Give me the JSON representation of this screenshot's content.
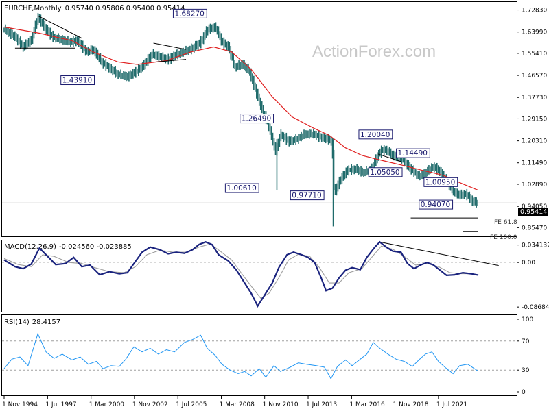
{
  "chart_data": [
    {
      "type": "ohlc",
      "title": "EURCHF,Monthly",
      "ohlc_text": "0.95740 0.95806 0.95400 0.95414",
      "ylim": [
        0.82,
        1.76
      ],
      "y_ticks": [
        "1.72830",
        "1.63990",
        "1.55410",
        "1.46570",
        "1.37730",
        "1.29150",
        "1.20310",
        "1.11490",
        "1.02890",
        "0.94050",
        "0.85470"
      ],
      "current_price": "0.95414",
      "x_labels": [
        "1 Nov 1994",
        "1 Jul 1997",
        "1 Mar 2000",
        "1 Nov 2002",
        "1 Jul 2005",
        "1 Mar 2008",
        "1 Nov 2010",
        "1 Jul 2013",
        "1 Mar 2016",
        "1 Nov 2018",
        "1 Jul 2021"
      ],
      "price_series": [
        [
          1994.83,
          1.65
        ],
        [
          1995.5,
          1.62
        ],
        [
          1996.0,
          1.58
        ],
        [
          1996.5,
          1.61
        ],
        [
          1996.9,
          1.7
        ],
        [
          1997.3,
          1.66
        ],
        [
          1997.8,
          1.62
        ],
        [
          1998.3,
          1.61
        ],
        [
          1998.8,
          1.6
        ],
        [
          1999.3,
          1.605
        ],
        [
          1999.9,
          1.56
        ],
        [
          2000.3,
          1.57
        ],
        [
          2000.8,
          1.52
        ],
        [
          2001.2,
          1.5
        ],
        [
          2001.8,
          1.47
        ],
        [
          2002.4,
          1.46
        ],
        [
          2002.9,
          1.48
        ],
        [
          2003.3,
          1.5
        ],
        [
          2003.9,
          1.55
        ],
        [
          2004.4,
          1.54
        ],
        [
          2004.9,
          1.53
        ],
        [
          2005.4,
          1.55
        ],
        [
          2005.9,
          1.56
        ],
        [
          2006.4,
          1.575
        ],
        [
          2006.9,
          1.6
        ],
        [
          2007.3,
          1.65
        ],
        [
          2007.8,
          1.66
        ],
        [
          2008.2,
          1.6
        ],
        [
          2008.6,
          1.58
        ],
        [
          2009.0,
          1.5
        ],
        [
          2009.5,
          1.51
        ],
        [
          2009.9,
          1.48
        ],
        [
          2010.3,
          1.4
        ],
        [
          2010.7,
          1.32
        ],
        [
          2011.0,
          1.28
        ],
        [
          2011.5,
          1.16
        ],
        [
          2011.6,
          1.18
        ],
        [
          2011.8,
          1.23
        ],
        [
          2012.3,
          1.201
        ],
        [
          2012.8,
          1.21
        ],
        [
          2013.3,
          1.23
        ],
        [
          2013.8,
          1.23
        ],
        [
          2014.3,
          1.218
        ],
        [
          2014.8,
          1.208
        ],
        [
          2014.96,
          1.2
        ],
        [
          2015.1,
          0.99
        ],
        [
          2015.4,
          1.04
        ],
        [
          2015.9,
          1.085
        ],
        [
          2016.4,
          1.09
        ],
        [
          2016.9,
          1.075
        ],
        [
          2017.4,
          1.09
        ],
        [
          2017.8,
          1.15
        ],
        [
          2018.1,
          1.17
        ],
        [
          2018.4,
          1.16
        ],
        [
          2018.8,
          1.14
        ],
        [
          2019.3,
          1.13
        ],
        [
          2019.8,
          1.09
        ],
        [
          2020.3,
          1.06
        ],
        [
          2020.7,
          1.075
        ],
        [
          2021.2,
          1.1
        ],
        [
          2021.6,
          1.08
        ],
        [
          2022.0,
          1.04
        ],
        [
          2022.4,
          1.0
        ],
        [
          2022.8,
          0.985
        ],
        [
          2023.2,
          0.99
        ],
        [
          2023.6,
          0.96
        ],
        [
          2023.95,
          0.954
        ]
      ],
      "ma_series": [
        [
          1994.83,
          1.66
        ],
        [
          1997.0,
          1.635
        ],
        [
          1999.0,
          1.605
        ],
        [
          2000.3,
          1.56
        ],
        [
          2001.8,
          1.52
        ],
        [
          2003.0,
          1.51
        ],
        [
          2004.8,
          1.525
        ],
        [
          2006.3,
          1.56
        ],
        [
          2007.7,
          1.58
        ],
        [
          2008.8,
          1.56
        ],
        [
          2010.0,
          1.49
        ],
        [
          2011.3,
          1.38
        ],
        [
          2012.5,
          1.3
        ],
        [
          2013.8,
          1.255
        ],
        [
          2014.8,
          1.225
        ],
        [
          2015.8,
          1.175
        ],
        [
          2016.8,
          1.145
        ],
        [
          2018.0,
          1.125
        ],
        [
          2019.3,
          1.105
        ],
        [
          2020.5,
          1.085
        ],
        [
          2021.8,
          1.065
        ],
        [
          2023.0,
          1.03
        ],
        [
          2023.95,
          1.005
        ]
      ],
      "annotations": [
        "1.68270",
        "1.43910",
        "1.26490",
        "1.00610",
        "0.97710",
        "1.20040",
        "1.14490",
        "1.05050",
        "1.00950",
        "0.94070"
      ],
      "fe_labels": [
        "FE 61.8",
        "FE 100.0"
      ],
      "colors": {
        "bars": "#1f6b6b",
        "ma": "#e02020",
        "box_border": "#1a1a6e",
        "current_bg": "#000000"
      }
    },
    {
      "type": "line",
      "title": "MACD(12,26,9)",
      "values_text": "-0.024560 -0.023885",
      "ylim": [
        -0.096,
        0.043
      ],
      "y_ticks": [
        "0.034137",
        "0.00",
        "-0.086849"
      ],
      "macd_series": [
        [
          1994.83,
          0.005
        ],
        [
          1995.5,
          -0.008
        ],
        [
          1996.0,
          -0.012
        ],
        [
          1996.5,
          -0.003
        ],
        [
          1997.0,
          0.028
        ],
        [
          1997.5,
          0.012
        ],
        [
          1998.0,
          -0.004
        ],
        [
          1998.6,
          -0.002
        ],
        [
          1999.1,
          0.01
        ],
        [
          1999.6,
          -0.008
        ],
        [
          2000.1,
          -0.005
        ],
        [
          2000.7,
          -0.024
        ],
        [
          2001.3,
          -0.018
        ],
        [
          2001.9,
          -0.022
        ],
        [
          2002.4,
          -0.02
        ],
        [
          2002.8,
          -0.002
        ],
        [
          2003.3,
          0.02
        ],
        [
          2003.8,
          0.03
        ],
        [
          2004.4,
          0.025
        ],
        [
          2004.9,
          0.017
        ],
        [
          2005.4,
          0.02
        ],
        [
          2005.9,
          0.018
        ],
        [
          2006.4,
          0.025
        ],
        [
          2006.8,
          0.035
        ],
        [
          2007.2,
          0.04
        ],
        [
          2007.6,
          0.035
        ],
        [
          2008.0,
          0.015
        ],
        [
          2008.6,
          0.003
        ],
        [
          2009.1,
          -0.015
        ],
        [
          2009.6,
          -0.04
        ],
        [
          2010.0,
          -0.06
        ],
        [
          2010.4,
          -0.085
        ],
        [
          2010.6,
          -0.075
        ],
        [
          2010.9,
          -0.06
        ],
        [
          2011.3,
          -0.04
        ],
        [
          2011.7,
          -0.01
        ],
        [
          2012.2,
          0.015
        ],
        [
          2012.6,
          0.02
        ],
        [
          2013.1,
          0.015
        ],
        [
          2013.5,
          0.01
        ],
        [
          2013.9,
          0.0
        ],
        [
          2014.3,
          -0.03
        ],
        [
          2014.6,
          -0.055
        ],
        [
          2015.0,
          -0.05
        ],
        [
          2015.4,
          -0.03
        ],
        [
          2015.8,
          -0.015
        ],
        [
          2016.2,
          -0.01
        ],
        [
          2016.7,
          -0.014
        ],
        [
          2017.1,
          0.01
        ],
        [
          2017.6,
          0.03
        ],
        [
          2017.9,
          0.04
        ],
        [
          2018.3,
          0.03
        ],
        [
          2018.7,
          0.022
        ],
        [
          2019.2,
          0.02
        ],
        [
          2019.6,
          -0.002
        ],
        [
          2020.0,
          -0.012
        ],
        [
          2020.4,
          -0.005
        ],
        [
          2020.8,
          0.0
        ],
        [
          2021.2,
          -0.005
        ],
        [
          2021.6,
          -0.015
        ],
        [
          2022.0,
          -0.025
        ],
        [
          2022.5,
          -0.024
        ],
        [
          2023.0,
          -0.02
        ],
        [
          2023.5,
          -0.022
        ],
        [
          2023.95,
          -0.0246
        ]
      ],
      "signal_series": [
        [
          1994.83,
          0.008
        ],
        [
          1995.7,
          -0.004
        ],
        [
          1996.5,
          -0.008
        ],
        [
          1997.2,
          0.015
        ],
        [
          1997.9,
          0.012
        ],
        [
          1998.8,
          0.0
        ],
        [
          1999.6,
          -0.002
        ],
        [
          2000.4,
          -0.01
        ],
        [
          2001.3,
          -0.018
        ],
        [
          2002.2,
          -0.02
        ],
        [
          2002.9,
          -0.008
        ],
        [
          2003.6,
          0.015
        ],
        [
          2004.4,
          0.024
        ],
        [
          2005.2,
          0.02
        ],
        [
          2006.0,
          0.02
        ],
        [
          2006.8,
          0.03
        ],
        [
          2007.5,
          0.036
        ],
        [
          2008.1,
          0.022
        ],
        [
          2008.8,
          0.005
        ],
        [
          2009.5,
          -0.025
        ],
        [
          2010.1,
          -0.05
        ],
        [
          2010.6,
          -0.07
        ],
        [
          2011.1,
          -0.06
        ],
        [
          2011.7,
          -0.03
        ],
        [
          2012.3,
          0.005
        ],
        [
          2012.9,
          0.016
        ],
        [
          2013.6,
          0.012
        ],
        [
          2014.2,
          -0.01
        ],
        [
          2014.8,
          -0.04
        ],
        [
          2015.4,
          -0.04
        ],
        [
          2016.0,
          -0.02
        ],
        [
          2016.8,
          -0.012
        ],
        [
          2017.4,
          0.01
        ],
        [
          2018.0,
          0.032
        ],
        [
          2018.7,
          0.026
        ],
        [
          2019.4,
          0.012
        ],
        [
          2020.1,
          -0.005
        ],
        [
          2020.8,
          -0.002
        ],
        [
          2021.5,
          -0.008
        ],
        [
          2022.2,
          -0.02
        ],
        [
          2022.9,
          -0.022
        ],
        [
          2023.5,
          -0.022
        ],
        [
          2023.95,
          -0.0239
        ]
      ],
      "colors": {
        "macd": "#1a237e",
        "signal": "#9e9e9e"
      }
    },
    {
      "type": "line",
      "title": "RSI(14)",
      "value_text": "28.4157",
      "ylim": [
        0,
        100
      ],
      "y_ticks": [
        "100",
        "70",
        "30",
        "0"
      ],
      "levels": [
        70,
        30
      ],
      "rsi_series": [
        [
          1994.83,
          32
        ],
        [
          1995.3,
          45
        ],
        [
          1995.8,
          48
        ],
        [
          1996.3,
          36
        ],
        [
          1996.9,
          80
        ],
        [
          1997.4,
          55
        ],
        [
          1997.9,
          46
        ],
        [
          1998.4,
          52
        ],
        [
          1999.0,
          44
        ],
        [
          1999.5,
          48
        ],
        [
          2000.0,
          38
        ],
        [
          2000.5,
          42
        ],
        [
          2000.9,
          32
        ],
        [
          2001.4,
          36
        ],
        [
          2001.9,
          35
        ],
        [
          2002.3,
          45
        ],
        [
          2002.8,
          62
        ],
        [
          2003.3,
          55
        ],
        [
          2003.8,
          60
        ],
        [
          2004.3,
          52
        ],
        [
          2004.8,
          58
        ],
        [
          2005.3,
          55
        ],
        [
          2005.9,
          68
        ],
        [
          2006.4,
          72
        ],
        [
          2006.9,
          78
        ],
        [
          2007.3,
          60
        ],
        [
          2007.8,
          50
        ],
        [
          2008.2,
          38
        ],
        [
          2008.7,
          30
        ],
        [
          2009.2,
          25
        ],
        [
          2009.6,
          28
        ],
        [
          2010.0,
          22
        ],
        [
          2010.5,
          32
        ],
        [
          2010.9,
          20
        ],
        [
          2011.4,
          36
        ],
        [
          2011.8,
          28
        ],
        [
          2012.4,
          34
        ],
        [
          2012.9,
          40
        ],
        [
          2013.4,
          38
        ],
        [
          2014.0,
          36
        ],
        [
          2014.5,
          34
        ],
        [
          2014.9,
          18
        ],
        [
          2015.3,
          35
        ],
        [
          2015.8,
          44
        ],
        [
          2016.2,
          36
        ],
        [
          2016.7,
          45
        ],
        [
          2017.1,
          52
        ],
        [
          2017.5,
          68
        ],
        [
          2017.9,
          60
        ],
        [
          2018.4,
          52
        ],
        [
          2018.9,
          45
        ],
        [
          2019.4,
          42
        ],
        [
          2019.9,
          35
        ],
        [
          2020.3,
          44
        ],
        [
          2020.7,
          52
        ],
        [
          2021.1,
          55
        ],
        [
          2021.5,
          42
        ],
        [
          2021.9,
          34
        ],
        [
          2022.4,
          25
        ],
        [
          2022.8,
          36
        ],
        [
          2023.3,
          38
        ],
        [
          2023.95,
          28.4
        ]
      ],
      "colors": {
        "rsi": "#2196f3"
      }
    }
  ],
  "watermark": "ActionForex.com"
}
